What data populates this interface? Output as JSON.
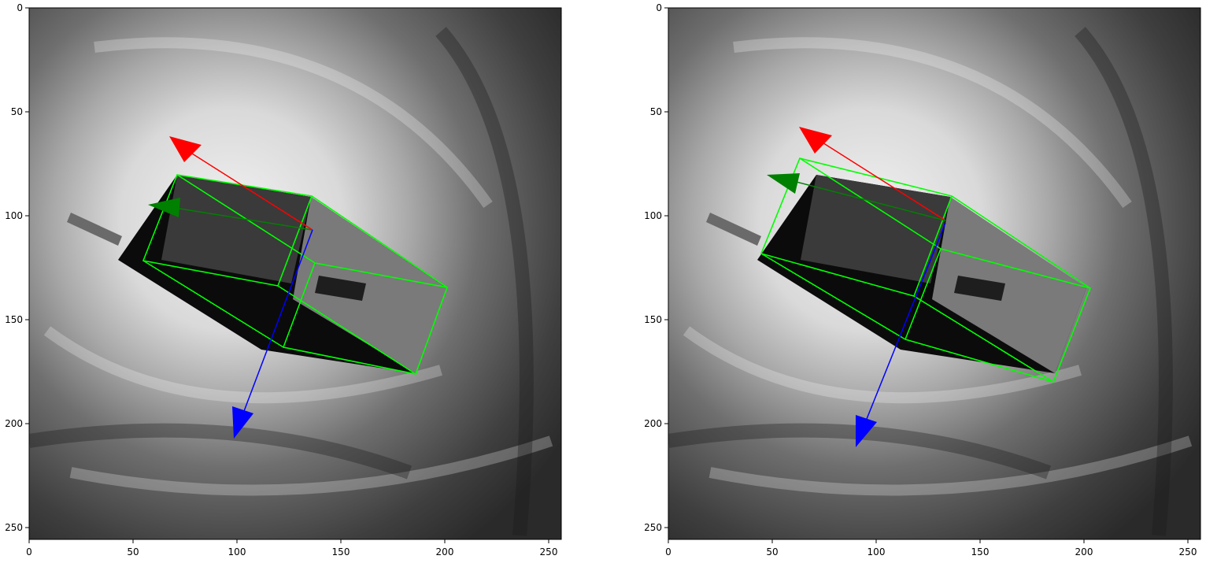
{
  "figure": {
    "panels": [
      {
        "name": "left",
        "image_content": "grayscale satellite image of a hurricane with a spacecraft overlay",
        "xticks": [
          "0",
          "50",
          "100",
          "150",
          "200",
          "250"
        ],
        "yticks": [
          "0",
          "50",
          "100",
          "150",
          "200",
          "250"
        ],
        "box_color": "#00ff00",
        "axis_colors": {
          "x": "#ff0000",
          "y": "#008000",
          "z": "#0000ff"
        }
      },
      {
        "name": "right",
        "image_content": "grayscale satellite image of a hurricane with a spacecraft overlay",
        "xticks": [
          "0",
          "50",
          "100",
          "150",
          "200",
          "250"
        ],
        "yticks": [
          "0",
          "50",
          "100",
          "150",
          "200",
          "250"
        ],
        "box_color": "#00ff00",
        "axis_colors": {
          "x": "#ff0000",
          "y": "#008000",
          "z": "#0000ff"
        }
      }
    ]
  }
}
